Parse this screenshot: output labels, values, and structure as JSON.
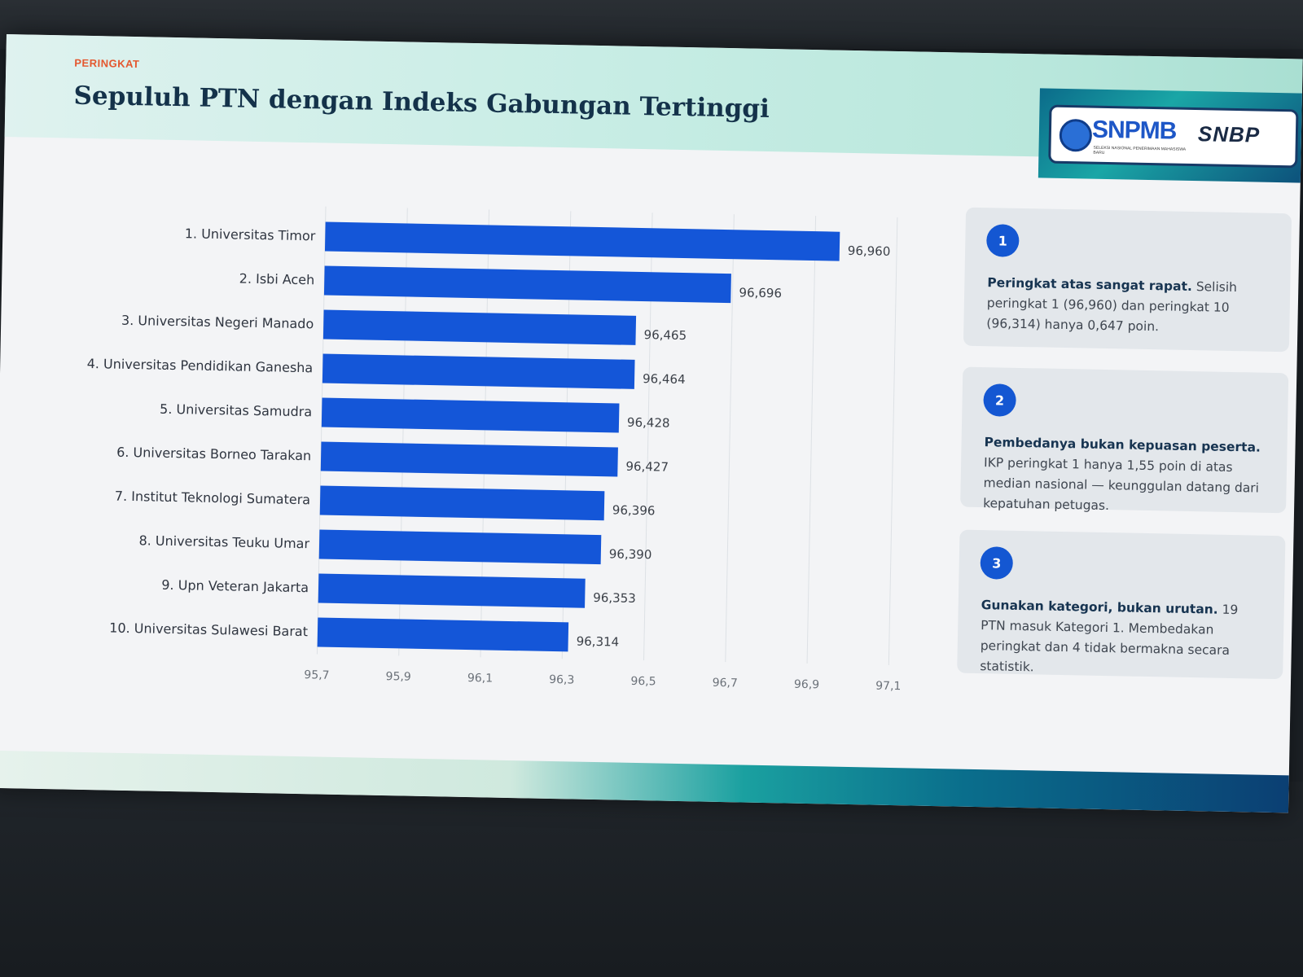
{
  "header": {
    "eyebrow": "PERINGKAT",
    "title": "Sepuluh PTN dengan Indeks Gabungan Tertinggi"
  },
  "logos": {
    "primary": "SNPMB",
    "primary_sub": "SELEKSI NASIONAL PENERIMAAN MAHASISWA BARU",
    "secondary": "SNBP"
  },
  "colors": {
    "bar": "#1456d8",
    "badge": "#1457d2",
    "eyebrow": "#e4572e",
    "title": "#14324a"
  },
  "chart_data": {
    "type": "bar",
    "orientation": "horizontal",
    "categories": [
      "1. Universitas Timor",
      "2. Isbi Aceh",
      "3. Universitas Negeri Manado",
      "4. Universitas Pendidikan Ganesha",
      "5. Universitas Samudra",
      "6. Universitas Borneo Tarakan",
      "7. Institut Teknologi Sumatera",
      "8. Universitas Teuku Umar",
      "9. Upn Veteran Jakarta",
      "10. Universitas Sulawesi Barat"
    ],
    "values": [
      96.96,
      96.696,
      96.465,
      96.464,
      96.428,
      96.427,
      96.396,
      96.39,
      96.353,
      96.314
    ],
    "value_labels": [
      "96,960",
      "96,696",
      "96,465",
      "96,464",
      "96,428",
      "96,427",
      "96,396",
      "96,390",
      "96,353",
      "96,314"
    ],
    "xlim": [
      95.7,
      97.1
    ],
    "ticks": [
      95.7,
      95.9,
      96.1,
      96.3,
      96.5,
      96.7,
      96.9,
      97.1
    ],
    "tick_labels": [
      "95,7",
      "95,9",
      "96,1",
      "96,3",
      "96,5",
      "96,7",
      "96,9",
      "97,1"
    ],
    "grid": true,
    "title": "",
    "xlabel": "",
    "ylabel": ""
  },
  "cards": [
    {
      "number": "1",
      "heading": "Peringkat atas sangat rapat.",
      "body": "Selisih peringkat 1 (96,960) dan peringkat 10 (96,314) hanya 0,647 poin."
    },
    {
      "number": "2",
      "heading": "Pembedanya bukan kepuasan peserta.",
      "body": "IKP peringkat 1 hanya 1,55 poin di atas median nasional — keunggulan datang dari kepatuhan petugas."
    },
    {
      "number": "3",
      "heading": "Gunakan kategori, bukan urutan.",
      "body": "19 PTN masuk Kategori 1. Membedakan peringkat dan 4 tidak bermakna secara statistik."
    }
  ]
}
